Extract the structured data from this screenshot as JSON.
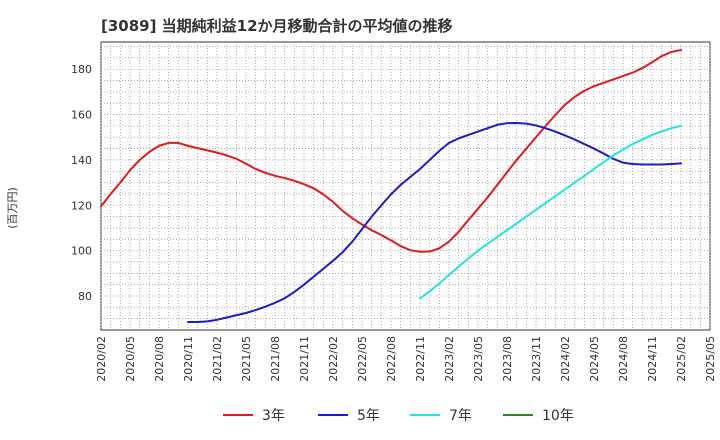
{
  "chart_data": {
    "type": "line",
    "title": "[3089]  当期純利益12か月移動合計の平均値の推移",
    "ylabel": "(百万円)",
    "xlabel": "",
    "ylim": [
      65,
      192
    ],
    "y_ticks": [
      80,
      100,
      120,
      140,
      160,
      180
    ],
    "x_ticks": [
      "2020/02",
      "2020/05",
      "2020/08",
      "2020/11",
      "2021/02",
      "2021/05",
      "2021/08",
      "2021/11",
      "2022/02",
      "2022/05",
      "2022/08",
      "2022/11",
      "2023/02",
      "2023/05",
      "2023/08",
      "2023/11",
      "2024/02",
      "2024/05",
      "2024/08",
      "2024/11",
      "2025/02",
      "2025/05"
    ],
    "grid": true,
    "legend_position": "bottom",
    "series": [
      {
        "name": "3年",
        "color": "#dd1c1c",
        "x": [
          "2020/02",
          "2020/03",
          "2020/04",
          "2020/05",
          "2020/06",
          "2020/07",
          "2020/08",
          "2020/09",
          "2020/10",
          "2020/11",
          "2020/12",
          "2021/01",
          "2021/02",
          "2021/03",
          "2021/04",
          "2021/05",
          "2021/06",
          "2021/07",
          "2021/08",
          "2021/09",
          "2021/10",
          "2021/11",
          "2021/12",
          "2022/01",
          "2022/02",
          "2022/03",
          "2022/04",
          "2022/05",
          "2022/06",
          "2022/07",
          "2022/08",
          "2022/09",
          "2022/10",
          "2022/11",
          "2022/12",
          "2023/01",
          "2023/02",
          "2023/03",
          "2023/04",
          "2023/05",
          "2023/06",
          "2023/07",
          "2023/08",
          "2023/09",
          "2023/10",
          "2023/11",
          "2023/12",
          "2024/01",
          "2024/02",
          "2024/03",
          "2024/04",
          "2024/05",
          "2024/06",
          "2024/07",
          "2024/08",
          "2024/09",
          "2024/10",
          "2024/11",
          "2024/12",
          "2025/01",
          "2025/02"
        ],
        "values": [
          119.5,
          125,
          130,
          135.5,
          140,
          143.5,
          146.2,
          147.5,
          147.5,
          146.2,
          145.2,
          144.2,
          143.2,
          142,
          140.5,
          138.3,
          136,
          134.3,
          133,
          132,
          130.8,
          129.3,
          127.5,
          124.8,
          121.5,
          117.5,
          114.3,
          111.5,
          109,
          106.9,
          104.5,
          102,
          100.2,
          99.5,
          99.6,
          101,
          104,
          108.3,
          113.5,
          118.5,
          123.5,
          129,
          134.5,
          140,
          145,
          150,
          155,
          159.8,
          164.3,
          167.8,
          170.5,
          172.5,
          174,
          175.5,
          177,
          178.5,
          180.5,
          183,
          185.8,
          187.6,
          188.5
        ]
      },
      {
        "name": "5年",
        "color": "#1c1cc8",
        "x": [
          "2020/11",
          "2020/12",
          "2021/01",
          "2021/02",
          "2021/03",
          "2021/04",
          "2021/05",
          "2021/06",
          "2021/07",
          "2021/08",
          "2021/09",
          "2021/10",
          "2021/11",
          "2021/12",
          "2022/01",
          "2022/02",
          "2022/03",
          "2022/04",
          "2022/05",
          "2022/06",
          "2022/07",
          "2022/08",
          "2022/09",
          "2022/10",
          "2022/11",
          "2022/12",
          "2023/01",
          "2023/02",
          "2023/03",
          "2023/04",
          "2023/05",
          "2023/06",
          "2023/07",
          "2023/08",
          "2023/09",
          "2023/10",
          "2023/11",
          "2023/12",
          "2024/01",
          "2024/02",
          "2024/03",
          "2024/04",
          "2024/05",
          "2024/06",
          "2024/07",
          "2024/08",
          "2024/09",
          "2024/10",
          "2024/11",
          "2024/12",
          "2025/01",
          "2025/02"
        ],
        "values": [
          68.5,
          68.5,
          68.8,
          69.5,
          70.5,
          71.5,
          72.5,
          73.8,
          75.3,
          77,
          79,
          81.8,
          85,
          88.5,
          92,
          95.5,
          99.3,
          104,
          109.5,
          115,
          120,
          124.8,
          129,
          132.5,
          136,
          140,
          144,
          147.5,
          149.5,
          151,
          152.5,
          154,
          155.5,
          156.2,
          156.3,
          156,
          155.2,
          154,
          152.5,
          150.8,
          149,
          147,
          145,
          142.8,
          140.5,
          138.8,
          138.2,
          138,
          138,
          138,
          138.2,
          138.5
        ]
      },
      {
        "name": "7年",
        "color": "#22e4e4",
        "x": [
          "2022/11",
          "2022/12",
          "2023/01",
          "2023/02",
          "2023/03",
          "2023/04",
          "2023/05",
          "2023/06",
          "2023/07",
          "2023/08",
          "2023/09",
          "2023/10",
          "2023/11",
          "2023/12",
          "2024/01",
          "2024/02",
          "2024/03",
          "2024/04",
          "2024/05",
          "2024/06",
          "2024/07",
          "2024/08",
          "2024/09",
          "2024/10",
          "2024/11",
          "2024/12",
          "2025/01",
          "2025/02"
        ],
        "values": [
          79,
          82,
          85.5,
          89.3,
          93,
          96.5,
          100,
          103,
          106,
          109,
          112,
          115,
          118,
          121,
          124,
          127,
          130,
          133,
          136,
          139,
          142,
          144.5,
          147,
          149,
          151,
          152.5,
          154,
          155
        ]
      },
      {
        "name": "10年",
        "color": "#228b22",
        "x": [],
        "values": []
      }
    ]
  }
}
